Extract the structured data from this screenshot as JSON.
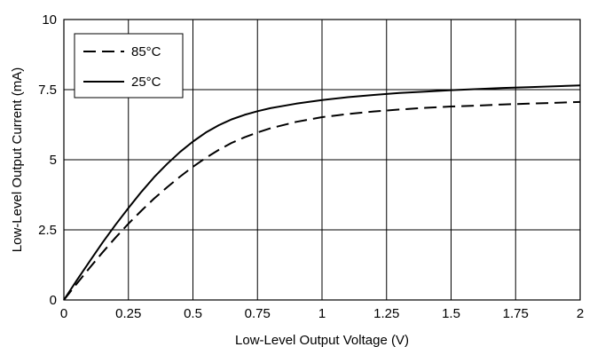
{
  "chart_data": {
    "type": "line",
    "title": "",
    "xlabel": "Low-Level Output Voltage (V)",
    "ylabel": "Low-Level Output Current (mA)",
    "xlim": [
      0,
      2
    ],
    "ylim": [
      0,
      10
    ],
    "xticks": [
      0,
      0.25,
      0.5,
      0.75,
      1,
      1.25,
      1.5,
      1.75,
      2
    ],
    "xtick_labels": [
      "0",
      "0.25",
      "0.5",
      "0.75",
      "1",
      "1.25",
      "1.5",
      "1.75",
      "2"
    ],
    "yticks": [
      0,
      2.5,
      5,
      7.5,
      10
    ],
    "ytick_labels": [
      "0",
      "2.5",
      "5",
      "7.5",
      "10"
    ],
    "grid": true,
    "legend_position": "top-left",
    "series": [
      {
        "name": "85°C",
        "style": "dashed",
        "color": "#000000",
        "x": [
          0,
          0.05,
          0.1,
          0.15,
          0.2,
          0.25,
          0.3,
          0.35,
          0.4,
          0.45,
          0.5,
          0.55,
          0.6,
          0.65,
          0.7,
          0.75,
          0.8,
          0.9,
          1.0,
          1.1,
          1.2,
          1.3,
          1.4,
          1.5,
          1.6,
          1.7,
          1.8,
          1.9,
          2.0
        ],
        "y": [
          0,
          0.58,
          1.15,
          1.7,
          2.22,
          2.72,
          3.18,
          3.62,
          4.02,
          4.4,
          4.75,
          5.07,
          5.35,
          5.6,
          5.8,
          5.97,
          6.12,
          6.35,
          6.52,
          6.63,
          6.72,
          6.79,
          6.85,
          6.9,
          6.93,
          6.97,
          7.0,
          7.03,
          7.06
        ]
      },
      {
        "name": "25°C",
        "style": "solid",
        "color": "#000000",
        "x": [
          0,
          0.05,
          0.1,
          0.15,
          0.2,
          0.25,
          0.3,
          0.35,
          0.4,
          0.45,
          0.5,
          0.55,
          0.6,
          0.65,
          0.7,
          0.75,
          0.8,
          0.9,
          1.0,
          1.1,
          1.2,
          1.3,
          1.4,
          1.5,
          1.6,
          1.7,
          1.8,
          1.9,
          2.0
        ],
        "y": [
          0,
          0.7,
          1.38,
          2.05,
          2.68,
          3.28,
          3.85,
          4.38,
          4.85,
          5.28,
          5.65,
          5.97,
          6.23,
          6.44,
          6.6,
          6.73,
          6.84,
          7.0,
          7.13,
          7.23,
          7.31,
          7.38,
          7.43,
          7.48,
          7.52,
          7.56,
          7.59,
          7.62,
          7.65
        ]
      }
    ]
  }
}
